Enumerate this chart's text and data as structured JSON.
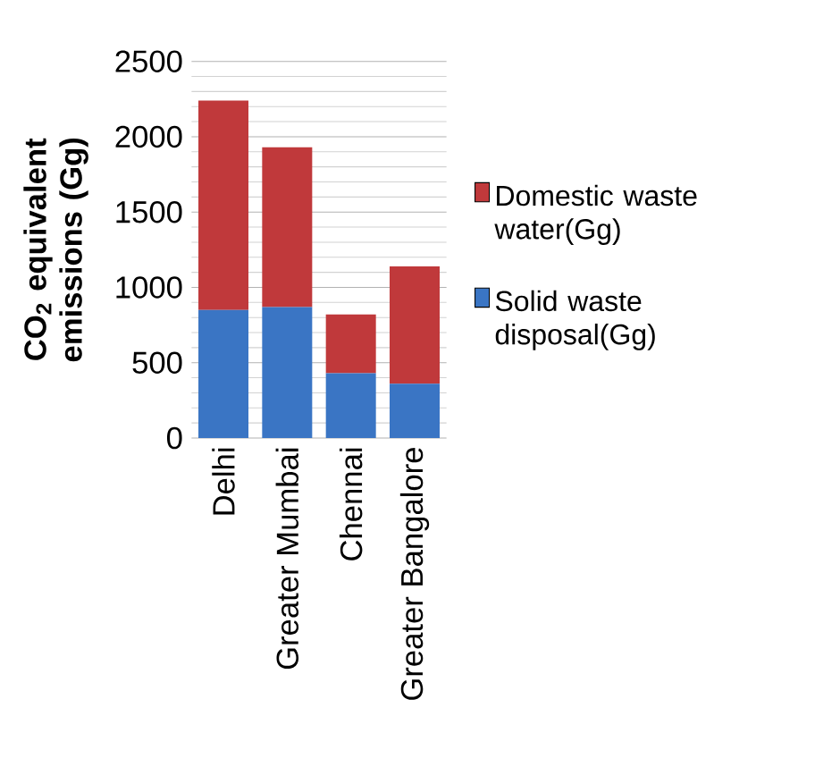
{
  "chart_data": {
    "type": "bar",
    "stacked": true,
    "ylabel": "CO$_{2}$ equivalent emissions (Gg)",
    "categories": [
      "Delhi",
      "Greater Mumbai",
      "Chennai",
      "Greater Bangalore"
    ],
    "series": [
      {
        "name": "Solid waste disposal(Gg)",
        "color": "#3a75c4",
        "values": [
          850,
          870,
          430,
          360
        ]
      },
      {
        "name": "Domestic waste water(Gg)",
        "color": "#c0393b",
        "values": [
          1390,
          1060,
          390,
          780
        ]
      }
    ],
    "ylim": [
      0,
      2500
    ],
    "yticks": [
      0,
      500,
      1000,
      1500,
      2000,
      2500
    ],
    "grid": "y",
    "legend": "right"
  }
}
